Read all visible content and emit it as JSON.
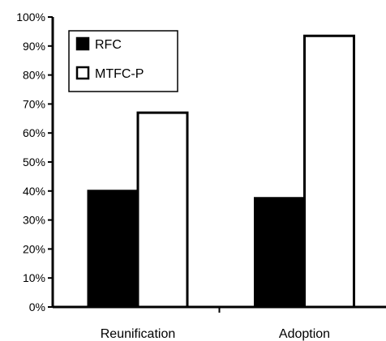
{
  "chart_data": {
    "type": "bar",
    "title": "",
    "xlabel": "",
    "ylabel": "",
    "categories": [
      "Reunification",
      "Adoption"
    ],
    "series": [
      {
        "name": "RFC",
        "values": [
          40,
          37.5
        ],
        "color": "#000000"
      },
      {
        "name": "MTFC-P",
        "values": [
          67,
          93.5
        ],
        "color": "#ffffff"
      }
    ],
    "ylim": [
      0,
      100
    ],
    "y_ticks": [
      {
        "value": 0,
        "label": "0%"
      },
      {
        "value": 10,
        "label": "10%"
      },
      {
        "value": 20,
        "label": "20%"
      },
      {
        "value": 30,
        "label": "30%"
      },
      {
        "value": 40,
        "label": "40%"
      },
      {
        "value": 50,
        "label": "50%"
      },
      {
        "value": 60,
        "label": "60%"
      },
      {
        "value": 70,
        "label": "70%"
      },
      {
        "value": 80,
        "label": "80%"
      },
      {
        "value": 90,
        "label": "90%"
      },
      {
        "value": 100,
        "label": "100%"
      }
    ],
    "grid": false,
    "legend_position": "top-left"
  }
}
